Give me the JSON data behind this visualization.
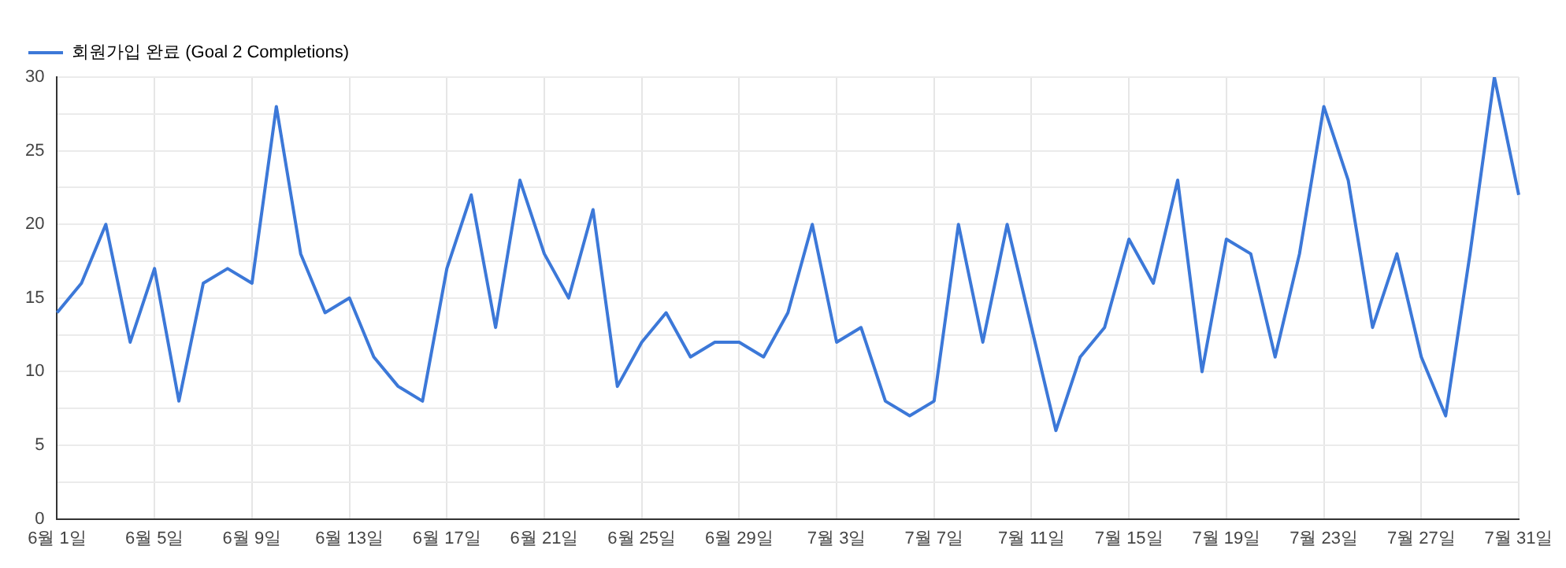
{
  "chart_data": {
    "type": "line",
    "categories": [
      "6월 1일",
      null,
      null,
      null,
      "6월 5일",
      null,
      null,
      null,
      "6월 9일",
      null,
      null,
      null,
      "6월 13일",
      null,
      null,
      null,
      "6월 17일",
      null,
      null,
      null,
      "6월 21일",
      null,
      null,
      null,
      "6월 25일",
      null,
      null,
      null,
      "6월 29일",
      null,
      null,
      null,
      "7월 3일",
      null,
      null,
      null,
      "7월 7일",
      null,
      null,
      null,
      "7월 11일",
      null,
      null,
      null,
      "7월 15일",
      null,
      null,
      null,
      "7월 19일",
      null,
      null,
      null,
      "7월 23일",
      null,
      null,
      null,
      "7월 27일",
      null,
      null,
      null,
      "7월 31일"
    ],
    "series": [
      {
        "name": "회원가입 완료 (Goal 2 Completions)",
        "color": "#3c78d8",
        "values": [
          14,
          16,
          20,
          12,
          17,
          8,
          16,
          17,
          16,
          28,
          18,
          14,
          15,
          11,
          9,
          8,
          17,
          22,
          13,
          23,
          18,
          15,
          21,
          9,
          12,
          14,
          11,
          12,
          12,
          11,
          14,
          20,
          12,
          13,
          8,
          7,
          8,
          20,
          12,
          20,
          13,
          6,
          11,
          13,
          19,
          16,
          23,
          10,
          19,
          18,
          11,
          18,
          28,
          23,
          13,
          18,
          11,
          7,
          18,
          30,
          22
        ]
      }
    ],
    "ylim": [
      0,
      30
    ],
    "yticks": [
      0,
      {
        "value": 2.5,
        "label": null
      },
      5,
      {
        "value": 7.5,
        "label": null
      },
      10,
      {
        "value": 12.5,
        "label": null
      },
      15,
      {
        "value": 17.5,
        "label": null
      },
      20,
      {
        "value": 22.5,
        "label": null
      },
      25,
      {
        "value": 27.5,
        "label": null
      },
      30
    ],
    "grid": true,
    "legend": "top left",
    "marker": "none",
    "line_style": "solid"
  }
}
